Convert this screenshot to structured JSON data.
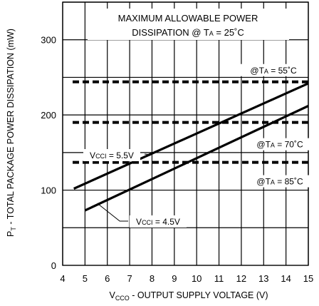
{
  "chart_data": {
    "type": "line",
    "title_line1": "MAXIMUM ALLOWABLE POWER",
    "title_line2_prefix": "DISSIPATION @ T",
    "title_line2_sub": "A",
    "title_line2_suffix": " = 25˚C",
    "xlabel_main": "V",
    "xlabel_sub": "CCO",
    "xlabel_rest": " - OUTPUT SUPPLY VOLTAGE (V)",
    "ylabel_main": "P",
    "ylabel_sub": "T",
    "ylabel_rest": " - TOTAL PACKAGE POWER DISSIPATION (mW)",
    "xlim": [
      4,
      15
    ],
    "ylim": [
      0,
      350
    ],
    "x_ticks": [
      4,
      5,
      6,
      7,
      8,
      9,
      10,
      11,
      12,
      13,
      14,
      15
    ],
    "y_ticks": [
      0,
      100,
      200,
      300
    ],
    "grid": true,
    "series": [
      {
        "name_main": "V",
        "name_sub": "CCI",
        "name_rest": " = 5.5V",
        "x": [
          4.5,
          15
        ],
        "y": [
          102,
          242
        ],
        "style": "solid"
      },
      {
        "name_main": "V",
        "name_sub": "CCI",
        "name_rest": " = 4.5V",
        "x": [
          5.0,
          15
        ],
        "y": [
          73,
          212
        ],
        "style": "solid"
      }
    ],
    "limits": [
      {
        "label_prefix": "@T",
        "label_sub": "A",
        "label_suffix": " = 55˚C",
        "value": 244
      },
      {
        "label_prefix": "@T",
        "label_sub": "A",
        "label_suffix": " = 70˚C",
        "value": 190
      },
      {
        "label_prefix": "@T",
        "label_sub": "A",
        "label_suffix": " = 85˚C",
        "value": 137
      }
    ]
  }
}
